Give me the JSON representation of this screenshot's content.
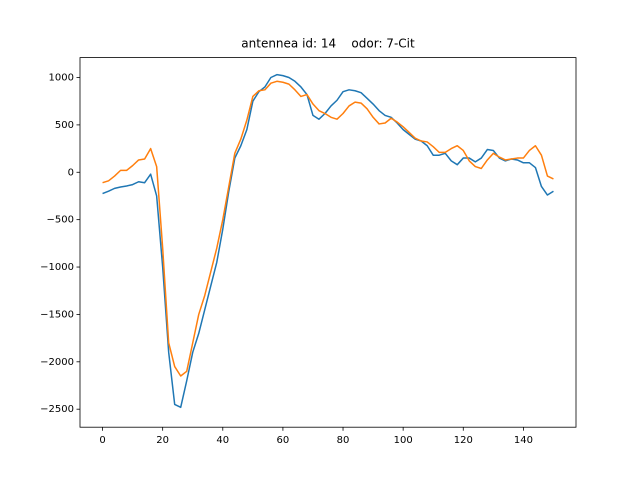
{
  "chart_data": {
    "type": "line",
    "title": "antennea id: 14    odor: 7-Cit",
    "x": [
      0,
      2,
      4,
      6,
      8,
      10,
      12,
      14,
      16,
      18,
      20,
      22,
      24,
      26,
      28,
      30,
      32,
      34,
      36,
      38,
      40,
      42,
      44,
      46,
      48,
      50,
      52,
      54,
      56,
      58,
      60,
      62,
      64,
      66,
      68,
      70,
      72,
      74,
      76,
      78,
      80,
      82,
      84,
      86,
      88,
      90,
      92,
      94,
      96,
      98,
      100,
      102,
      104,
      106,
      108,
      110,
      112,
      114,
      116,
      118,
      120,
      122,
      124,
      126,
      128,
      130,
      132,
      134,
      136,
      138,
      140,
      142,
      144,
      146,
      148,
      150
    ],
    "series": [
      {
        "color": "#1f77b4",
        "values": [
          -225,
          -200,
          -170,
          -155,
          -145,
          -130,
          -100,
          -110,
          -20,
          -250,
          -1000,
          -1900,
          -2450,
          -2480,
          -2200,
          -1900,
          -1700,
          -1450,
          -1200,
          -950,
          -600,
          -200,
          150,
          280,
          450,
          750,
          850,
          900,
          1000,
          1030,
          1020,
          1000,
          960,
          900,
          820,
          600,
          560,
          620,
          700,
          760,
          850,
          870,
          860,
          840,
          780,
          720,
          650,
          600,
          580,
          520,
          450,
          400,
          350,
          330,
          280,
          180,
          180,
          200,
          120,
          80,
          150,
          150,
          110,
          150,
          240,
          230,
          150,
          120,
          140,
          130,
          100,
          100,
          50,
          -150,
          -240,
          -200
        ]
      },
      {
        "color": "#ff7f0e",
        "values": [
          -110,
          -90,
          -40,
          20,
          20,
          70,
          130,
          140,
          250,
          60,
          -800,
          -1800,
          -2050,
          -2150,
          -2100,
          -1800,
          -1500,
          -1300,
          -1050,
          -800,
          -500,
          -150,
          200,
          350,
          550,
          800,
          860,
          870,
          940,
          960,
          950,
          930,
          870,
          800,
          820,
          720,
          650,
          620,
          580,
          560,
          620,
          700,
          740,
          730,
          670,
          580,
          510,
          520,
          570,
          530,
          480,
          420,
          360,
          330,
          320,
          270,
          210,
          210,
          250,
          280,
          230,
          120,
          60,
          40,
          130,
          200,
          160,
          130,
          140,
          150,
          150,
          230,
          280,
          180,
          -40,
          -70
        ]
      }
    ],
    "xlim": [
      -7.5,
      157.5
    ],
    "xticks": [
      0,
      20,
      40,
      60,
      80,
      100,
      120,
      140
    ],
    "ylim": [
      -2690,
      1210
    ],
    "yticks": [
      {
        "value": -2500,
        "label": "−2500"
      },
      {
        "value": -2000,
        "label": "−2000"
      },
      {
        "value": -1500,
        "label": "−1500"
      },
      {
        "value": -1000,
        "label": "−1000"
      },
      {
        "value": -500,
        "label": "−500"
      },
      0,
      500,
      1000
    ]
  }
}
